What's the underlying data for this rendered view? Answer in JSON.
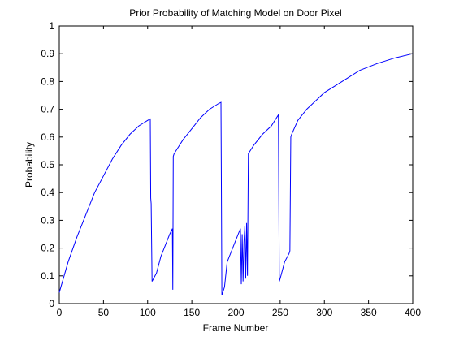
{
  "chart_data": {
    "type": "line",
    "title": "Prior Probability of Matching Model on Door Pixel",
    "xlabel": "Frame Number",
    "ylabel": "Probability",
    "xlim": [
      0,
      400
    ],
    "ylim": [
      0,
      1
    ],
    "xticks": [
      0,
      50,
      100,
      150,
      200,
      250,
      300,
      350,
      400
    ],
    "yticks": [
      0,
      0.1,
      0.2,
      0.3,
      0.4,
      0.5,
      0.6,
      0.7,
      0.8,
      0.9,
      1
    ],
    "xtick_labels": [
      "0",
      "50",
      "100",
      "150",
      "200",
      "250",
      "300",
      "350",
      "400"
    ],
    "ytick_labels": [
      "0",
      "0.1",
      "0.2",
      "0.3",
      "0.4",
      "0.5",
      "0.6",
      "0.7",
      "0.8",
      "0.9",
      "1"
    ],
    "grid": false,
    "series": [
      {
        "color": "#0000ff",
        "x": [
          0,
          10,
          20,
          30,
          40,
          50,
          60,
          70,
          80,
          90,
          100,
          103,
          103.5,
          104,
          105,
          110,
          115,
          120,
          125,
          128,
          128.5,
          129,
          130,
          132,
          140,
          150,
          160,
          170,
          180,
          183,
          183.5,
          184,
          187,
          190,
          200,
          205,
          206,
          207,
          208,
          209,
          210,
          211,
          212,
          213,
          214,
          216,
          220,
          230,
          240,
          248,
          248.5,
          249,
          250,
          255,
          260,
          261,
          262,
          263,
          270,
          280,
          300,
          320,
          340,
          360,
          380,
          400
        ],
        "y": [
          0.04,
          0.15,
          0.24,
          0.32,
          0.4,
          0.46,
          0.52,
          0.57,
          0.61,
          0.64,
          0.66,
          0.665,
          0.38,
          0.36,
          0.08,
          0.11,
          0.17,
          0.21,
          0.25,
          0.27,
          0.05,
          0.53,
          0.54,
          0.55,
          0.59,
          0.63,
          0.67,
          0.7,
          0.72,
          0.725,
          0.4,
          0.03,
          0.06,
          0.15,
          0.23,
          0.27,
          0.07,
          0.25,
          0.08,
          0.22,
          0.28,
          0.09,
          0.29,
          0.1,
          0.54,
          0.55,
          0.57,
          0.61,
          0.64,
          0.68,
          0.37,
          0.08,
          0.09,
          0.15,
          0.18,
          0.19,
          0.6,
          0.61,
          0.66,
          0.7,
          0.76,
          0.8,
          0.84,
          0.865,
          0.885,
          0.9
        ]
      }
    ]
  }
}
